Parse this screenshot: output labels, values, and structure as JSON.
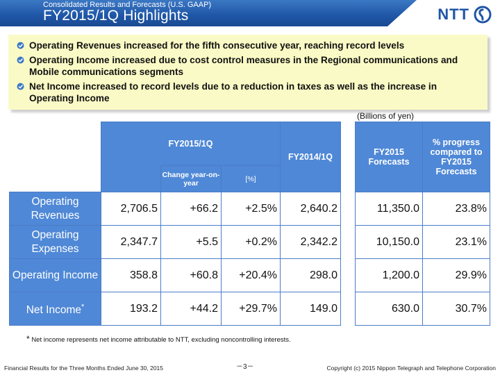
{
  "header": {
    "subtitle": "Consolidated Results and Forecasts (U.S. GAAP)",
    "title": "FY2015/1Q Highlights",
    "logo_text": "NTT",
    "brand_color": "#1f56a6"
  },
  "highlights": [
    "Operating Revenues increased for the fifth consecutive year, reaching record levels",
    "Operating Income increased due to cost control measures in the Regional communications and Mobile communications segments",
    "Net Income increased to record levels due to a reduction in taxes as well as the increase in Operating Income"
  ],
  "unit": "(Billions of yen)",
  "table": {
    "headers": {
      "fy2015_1q": "FY2015/1Q",
      "change_yoy": "Change year-on-year",
      "pct": "[%]",
      "fy2014_1q": "FY2014/1Q",
      "fy2015_forecasts": "FY2015 Forecasts",
      "progress": "% progress compared to FY2015 Forecasts"
    },
    "rows": [
      {
        "label": "Operating Revenues",
        "fy2015_1q": "2,706.5",
        "change": "+66.2",
        "pct": "+2.5%",
        "fy2014_1q": "2,640.2",
        "forecast": "11,350.0",
        "progress": "23.8%"
      },
      {
        "label": "Operating Expenses",
        "fy2015_1q": "2,347.7",
        "change": "+5.5",
        "pct": "+0.2%",
        "fy2014_1q": "2,342.2",
        "forecast": "10,150.0",
        "progress": "23.1%"
      },
      {
        "label": "Operating Income",
        "fy2015_1q": "358.8",
        "change": "+60.8",
        "pct": "+20.4%",
        "fy2014_1q": "298.0",
        "forecast": "1,200.0",
        "progress": "29.9%"
      },
      {
        "label": "Net Income",
        "label_mark": "*",
        "fy2015_1q": "193.2",
        "change": "+44.2",
        "pct": "+29.7%",
        "fy2014_1q": "149.0",
        "forecast": "630.0",
        "progress": "30.7%"
      }
    ]
  },
  "footnote": {
    "mark": "*",
    "text": "Net income represents net income attributable to NTT, excluding noncontrolling interests."
  },
  "footer": {
    "left": "Financial Results for the Three Months Ended June 30, 2015",
    "page": "－3－",
    "right": "Copyright (c) 2015  Nippon Telegraph and Telephone Corporation"
  }
}
